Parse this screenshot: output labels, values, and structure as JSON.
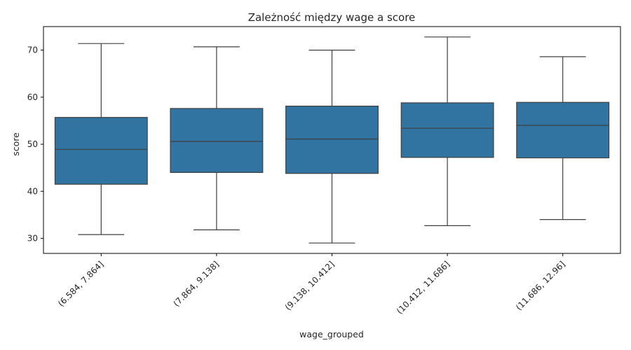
{
  "chart_data": {
    "type": "box",
    "title": "Zależność między wage a score",
    "xlabel": "wage_grouped",
    "ylabel": "score",
    "categories": [
      "(6.584, 7.864]",
      "(7.864, 9.138]",
      "(9.138, 10.412]",
      "(10.412, 11.686]",
      "(11.686, 12.96]"
    ],
    "boxes": [
      {
        "whisker_low": 30.8,
        "q1": 41.5,
        "median": 48.9,
        "q3": 55.7,
        "whisker_high": 71.4
      },
      {
        "whisker_low": 31.8,
        "q1": 44.0,
        "median": 50.6,
        "q3": 57.6,
        "whisker_high": 70.7
      },
      {
        "whisker_low": 29.0,
        "q1": 43.8,
        "median": 51.1,
        "q3": 58.1,
        "whisker_high": 70.0
      },
      {
        "whisker_low": 32.7,
        "q1": 47.2,
        "median": 53.4,
        "q3": 58.8,
        "whisker_high": 72.8
      },
      {
        "whisker_low": 34.0,
        "q1": 47.1,
        "median": 54.0,
        "q3": 58.9,
        "whisker_high": 68.6
      }
    ],
    "yticks": [
      30,
      40,
      50,
      60,
      70
    ],
    "ylim": [
      26.8,
      75.0
    ],
    "grid": false,
    "colors": {
      "box_fill": "#3274a1",
      "line": "#3f3f3f",
      "axes": "#000000"
    }
  }
}
